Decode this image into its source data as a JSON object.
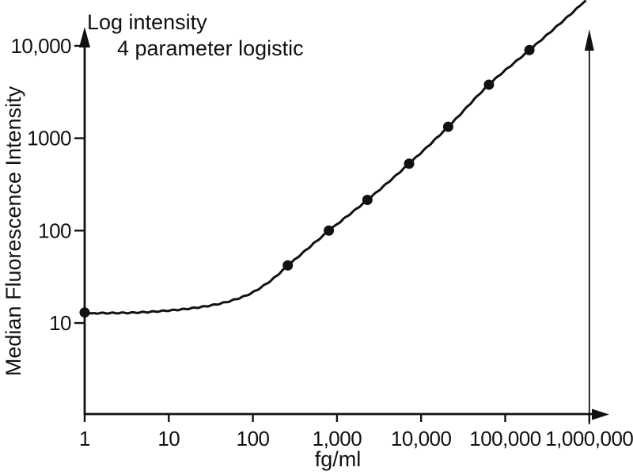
{
  "annotations": {
    "line1": "Log intensity",
    "line2": "4 parameter logistic"
  },
  "chart_data": {
    "type": "scatter",
    "title": "",
    "xlabel": "fg/ml",
    "ylabel": "Median Fluorescence Intensity",
    "x_scale": "log",
    "y_scale": "log",
    "xlim": [
      1,
      1000000
    ],
    "ylim_ticks": [
      10,
      10000
    ],
    "grid": "off",
    "legend": "none",
    "x_tick_values": [
      1,
      10,
      100,
      1000,
      10000,
      100000,
      1000000
    ],
    "x_tick_labels": [
      "1",
      "10",
      "100",
      "1,000",
      "10,000",
      "100,000",
      "1,000,000"
    ],
    "y_tick_values": [
      10,
      100,
      1000,
      10000
    ],
    "y_tick_labels": [
      "10",
      "100",
      "1000",
      "10,000"
    ],
    "points": [
      {
        "x": 1,
        "y": 13
      },
      {
        "x": 260,
        "y": 42
      },
      {
        "x": 800,
        "y": 100
      },
      {
        "x": 2300,
        "y": 215
      },
      {
        "x": 7200,
        "y": 530
      },
      {
        "x": 21000,
        "y": 1330
      },
      {
        "x": 64000,
        "y": 3800
      },
      {
        "x": 194000,
        "y": 9000
      }
    ],
    "fit_model": "4 parameter logistic",
    "fit_curve_loglog_anchors": [
      [
        0.0,
        1.105
      ],
      [
        0.5,
        1.11
      ],
      [
        1.0,
        1.135
      ],
      [
        1.5,
        1.19
      ],
      [
        1.9,
        1.29
      ],
      [
        2.2,
        1.45
      ],
      [
        2.418,
        1.623
      ],
      [
        2.907,
        2.0
      ],
      [
        3.362,
        2.332
      ],
      [
        3.857,
        2.724
      ],
      [
        4.322,
        3.124
      ],
      [
        4.806,
        3.58
      ],
      [
        5.288,
        3.954
      ],
      [
        5.7,
        4.28
      ],
      [
        5.97,
        4.5
      ]
    ],
    "colors": {
      "axes": "#111111",
      "curve": "#111111",
      "points": "#111111",
      "background": "#ffffff"
    }
  }
}
